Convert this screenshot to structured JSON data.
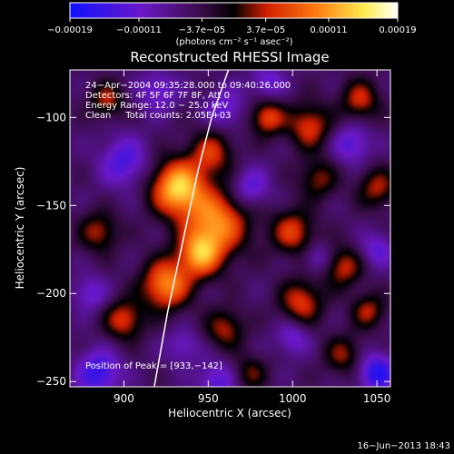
{
  "chart_data": {
    "type": "heatmap",
    "title": "Reconstructed RHESSI Image",
    "xlabel": "Heliocentric X (arcsec)",
    "ylabel": "Heliocentric Y (arcsec)",
    "xlim": [
      868,
      1058
    ],
    "ylim": [
      -253,
      -73
    ],
    "xticks": [
      900,
      950,
      1000,
      1050
    ],
    "xtick_labels": [
      "900",
      "950",
      "1000",
      "1050"
    ],
    "yticks": [
      -100,
      -150,
      -200,
      -250
    ],
    "ytick_labels": [
      "−100",
      "−150",
      "−200",
      "−250"
    ],
    "colorbar": {
      "range": [
        -0.00019,
        0.00019
      ],
      "ticks": [
        -0.00019,
        -0.00011,
        -3.7e-05,
        3.7e-05,
        0.00011,
        0.00019
      ],
      "tick_labels": [
        "−0.00019",
        "−0.00011",
        "−3.7e−05",
        "3.7e−05",
        "0.00011",
        "0.00019"
      ],
      "unit_label": "(photons cm⁻² s⁻¹ asec⁻²)",
      "colors": [
        "#1010ff",
        "#6a18c8",
        "#3a0c48",
        "#000000",
        "#d21e00",
        "#ff7a10",
        "#ffee50",
        "#ffffff"
      ]
    },
    "annotations": [
      "24−Apr−2004 09:35:28.000 to 09:40:26.000",
      "Detectors: 4F 5F 6F 7F 8F, Att 0",
      "Energy Range: 12.0 − 25.0 keV",
      "Clean     Total counts: 2.05E+03",
      "Position of Peak = [933,−142]"
    ],
    "limb_curve": {
      "x": [
        918,
        926,
        935,
        944,
        952,
        962
      ],
      "y": [
        -253,
        -210,
        -170,
        -130,
        -100,
        -73
      ]
    },
    "sources": [
      {
        "x": 932,
        "y": -140,
        "intensity": 1.0,
        "width": 11
      },
      {
        "x": 925,
        "y": -195,
        "intensity": 0.8,
        "width": 10
      },
      {
        "x": 955,
        "y": -160,
        "intensity": 0.8,
        "width": 13
      },
      {
        "x": 945,
        "y": -178,
        "intensity": 0.75,
        "width": 9
      },
      {
        "x": 952,
        "y": -120,
        "intensity": 0.5,
        "width": 9
      },
      {
        "x": 985,
        "y": -100,
        "intensity": 0.6,
        "width": 7
      },
      {
        "x": 1010,
        "y": -105,
        "intensity": 0.55,
        "width": 9
      },
      {
        "x": 1040,
        "y": -90,
        "intensity": 0.5,
        "width": 8
      },
      {
        "x": 1000,
        "y": -165,
        "intensity": 0.55,
        "width": 9
      },
      {
        "x": 1005,
        "y": -205,
        "intensity": 0.55,
        "width": 9
      },
      {
        "x": 1030,
        "y": -185,
        "intensity": 0.5,
        "width": 8
      },
      {
        "x": 1050,
        "y": -140,
        "intensity": 0.45,
        "width": 8
      },
      {
        "x": 900,
        "y": -215,
        "intensity": 0.55,
        "width": 8
      },
      {
        "x": 885,
        "y": -165,
        "intensity": 0.45,
        "width": 8
      },
      {
        "x": 890,
        "y": -90,
        "intensity": 0.45,
        "width": 7
      },
      {
        "x": 960,
        "y": -220,
        "intensity": 0.45,
        "width": 8
      },
      {
        "x": 1030,
        "y": -235,
        "intensity": 0.4,
        "width": 8
      },
      {
        "x": 975,
        "y": -245,
        "intensity": 0.35,
        "width": 7
      },
      {
        "x": 1045,
        "y": -210,
        "intensity": 0.45,
        "width": 7
      },
      {
        "x": 1015,
        "y": -135,
        "intensity": 0.4,
        "width": 8
      },
      {
        "x": 975,
        "y": -140,
        "intensity": -0.4,
        "width": 8
      },
      {
        "x": 900,
        "y": -125,
        "intensity": -0.45,
        "width": 10
      },
      {
        "x": 960,
        "y": -95,
        "intensity": -0.35,
        "width": 8
      },
      {
        "x": 885,
        "y": -245,
        "intensity": -0.55,
        "width": 9
      },
      {
        "x": 955,
        "y": -250,
        "intensity": -0.4,
        "width": 8
      },
      {
        "x": 1050,
        "y": -245,
        "intensity": -0.6,
        "width": 8
      },
      {
        "x": 1050,
        "y": -175,
        "intensity": -0.35,
        "width": 7
      },
      {
        "x": 1035,
        "y": -115,
        "intensity": -0.4,
        "width": 8
      },
      {
        "x": 985,
        "y": -80,
        "intensity": -0.35,
        "width": 7
      },
      {
        "x": 920,
        "y": -85,
        "intensity": -0.35,
        "width": 8
      },
      {
        "x": 1000,
        "y": -225,
        "intensity": -0.35,
        "width": 7
      },
      {
        "x": 935,
        "y": -230,
        "intensity": -0.3,
        "width": 7
      },
      {
        "x": 1015,
        "y": -180,
        "intensity": -0.3,
        "width": 6
      },
      {
        "x": 880,
        "y": -200,
        "intensity": -0.35,
        "width": 7
      }
    ]
  },
  "footer": {
    "timestamp": "16−Jun−2013 18:43"
  }
}
